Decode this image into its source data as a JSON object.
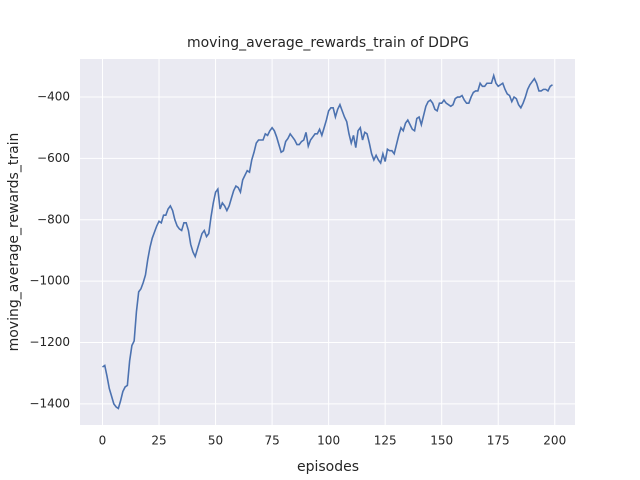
{
  "chart_data": {
    "type": "line",
    "title": "moving_average_rewards_train of DDPG",
    "xlabel": "episodes",
    "ylabel": "moving_average_rewards_train",
    "color": "#4c72b0",
    "grid": true,
    "x": [
      0,
      1,
      2,
      3,
      4,
      5,
      6,
      7,
      8,
      9,
      10,
      11,
      12,
      13,
      14,
      15,
      16,
      17,
      18,
      19,
      20,
      21,
      22,
      23,
      24,
      25,
      26,
      27,
      28,
      29,
      30,
      31,
      32,
      33,
      34,
      35,
      36,
      37,
      38,
      39,
      40,
      41,
      42,
      43,
      44,
      45,
      46,
      47,
      48,
      49,
      50,
      51,
      52,
      53,
      54,
      55,
      56,
      57,
      58,
      59,
      60,
      61,
      62,
      63,
      64,
      65,
      66,
      67,
      68,
      69,
      70,
      71,
      72,
      73,
      74,
      75,
      76,
      77,
      78,
      79,
      80,
      81,
      82,
      83,
      84,
      85,
      86,
      87,
      88,
      89,
      90,
      91,
      92,
      93,
      94,
      95,
      96,
      97,
      98,
      99,
      100,
      101,
      102,
      103,
      104,
      105,
      106,
      107,
      108,
      109,
      110,
      111,
      112,
      113,
      114,
      115,
      116,
      117,
      118,
      119,
      120,
      121,
      122,
      123,
      124,
      125,
      126,
      127,
      128,
      129,
      130,
      131,
      132,
      133,
      134,
      135,
      136,
      137,
      138,
      139,
      140,
      141,
      142,
      143,
      144,
      145,
      146,
      147,
      148,
      149,
      150,
      151,
      152,
      153,
      154,
      155,
      156,
      157,
      158,
      159,
      160,
      161,
      162,
      163,
      164,
      165,
      166,
      167,
      168,
      169,
      170,
      171,
      172,
      173,
      174,
      175,
      176,
      177,
      178,
      179,
      180,
      181,
      182,
      183,
      184,
      185,
      186,
      187,
      188,
      189,
      190,
      191,
      192,
      193,
      194,
      195,
      196,
      197,
      198,
      199
    ],
    "values": [
      -1280,
      -1275,
      -1310,
      -1350,
      -1375,
      -1400,
      -1410,
      -1415,
      -1390,
      -1360,
      -1345,
      -1340,
      -1260,
      -1210,
      -1195,
      -1100,
      -1035,
      -1025,
      -1005,
      -980,
      -930,
      -890,
      -860,
      -840,
      -820,
      -805,
      -810,
      -785,
      -785,
      -765,
      -755,
      -770,
      -800,
      -820,
      -830,
      -835,
      -810,
      -810,
      -835,
      -880,
      -905,
      -920,
      -895,
      -870,
      -845,
      -835,
      -855,
      -845,
      -790,
      -745,
      -710,
      -700,
      -765,
      -745,
      -755,
      -770,
      -755,
      -730,
      -705,
      -690,
      -695,
      -710,
      -670,
      -655,
      -640,
      -645,
      -605,
      -580,
      -550,
      -540,
      -540,
      -540,
      -520,
      -525,
      -510,
      -500,
      -510,
      -530,
      -555,
      -580,
      -575,
      -545,
      -535,
      -520,
      -530,
      -540,
      -555,
      -555,
      -545,
      -540,
      -515,
      -560,
      -540,
      -530,
      -520,
      -520,
      -505,
      -525,
      -500,
      -475,
      -445,
      -435,
      -435,
      -465,
      -440,
      -425,
      -445,
      -465,
      -480,
      -520,
      -550,
      -525,
      -565,
      -510,
      -500,
      -540,
      -515,
      -520,
      -550,
      -585,
      -605,
      -590,
      -605,
      -615,
      -585,
      -610,
      -570,
      -575,
      -575,
      -585,
      -555,
      -525,
      -500,
      -510,
      -485,
      -475,
      -490,
      -505,
      -510,
      -470,
      -465,
      -490,
      -460,
      -430,
      -415,
      -410,
      -420,
      -440,
      -445,
      -420,
      -420,
      -410,
      -420,
      -425,
      -430,
      -425,
      -405,
      -400,
      -400,
      -395,
      -410,
      -420,
      -420,
      -400,
      -385,
      -380,
      -380,
      -355,
      -365,
      -365,
      -355,
      -355,
      -355,
      -330,
      -355,
      -365,
      -360,
      -355,
      -375,
      -390,
      -395,
      -415,
      -400,
      -405,
      -425,
      -435,
      -420,
      -400,
      -375,
      -360,
      -350,
      -340,
      -355,
      -380,
      -380,
      -375,
      -375,
      -380,
      -365,
      -360
    ],
    "xlim": [
      -9.95,
      208.95
    ],
    "ylim": [
      -1469,
      -276
    ],
    "xticks": [
      0,
      25,
      50,
      75,
      100,
      125,
      150,
      175,
      200
    ],
    "yticks": [
      {
        "value": -1400,
        "label": "−1400"
      },
      {
        "value": -1200,
        "label": "−1200"
      },
      {
        "value": -1000,
        "label": "−1000"
      },
      {
        "value": -800,
        "label": "−800"
      },
      {
        "value": -600,
        "label": "−600"
      },
      {
        "value": -400,
        "label": "−400"
      }
    ]
  }
}
